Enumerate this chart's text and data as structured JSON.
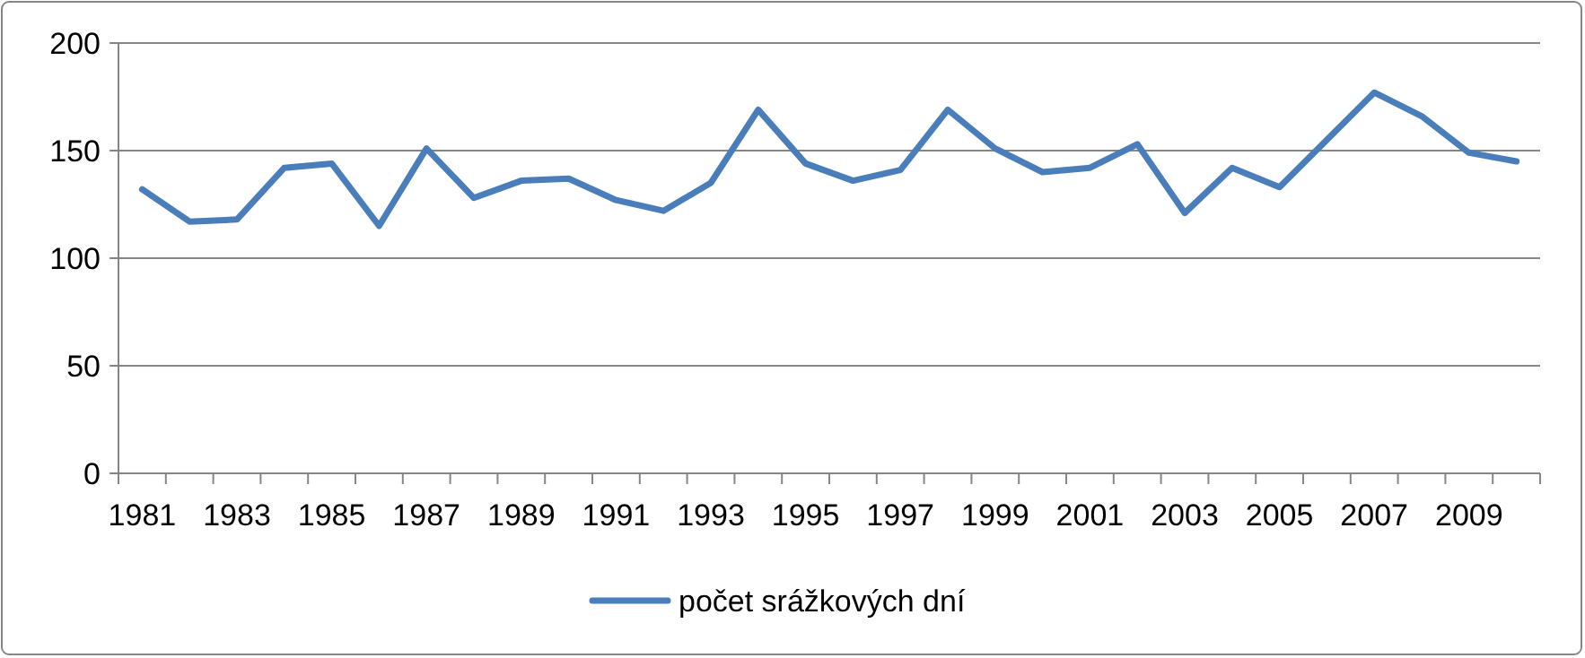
{
  "chart_data": {
    "type": "line",
    "categories": [
      "1981",
      null,
      "1983",
      null,
      "1985",
      null,
      "1987",
      null,
      "1989",
      null,
      "1991",
      null,
      "1993",
      null,
      "1995",
      null,
      "1997",
      null,
      "1999",
      null,
      "2001",
      null,
      "2003",
      null,
      "2005",
      null,
      "2007",
      null,
      "2009",
      null
    ],
    "series": [
      {
        "name": "počet srážkových dní",
        "color": "#4a7ebb",
        "values": [
          132,
          117,
          118,
          142,
          144,
          115,
          151,
          128,
          136,
          137,
          127,
          122,
          135,
          169,
          144,
          136,
          141,
          169,
          151,
          140,
          142,
          153,
          121,
          142,
          133,
          155,
          177,
          166,
          149,
          145
        ]
      }
    ],
    "ylim": [
      0,
      200
    ],
    "yticks": [
      0,
      50,
      100,
      150,
      200
    ],
    "grid": "y",
    "legend": "bottom",
    "marker": "none",
    "line_style": "solid"
  }
}
